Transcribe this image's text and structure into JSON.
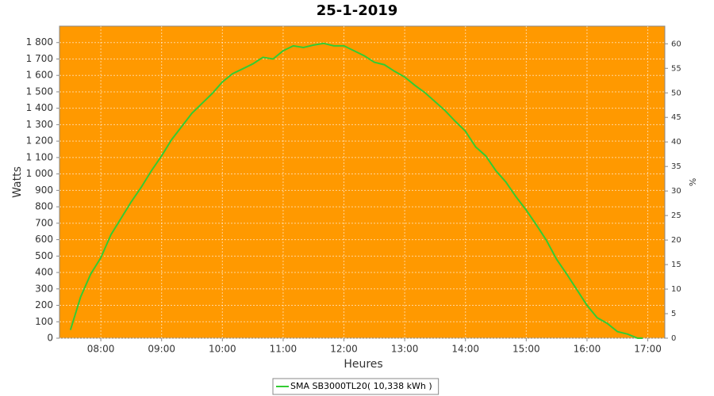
{
  "chart_data": {
    "type": "line",
    "title": "25-1-2019",
    "xlabel": "Heures",
    "ylabel": "Watts",
    "y2label": "%",
    "x": [
      7.5,
      7.6667,
      7.8333,
      8,
      8.1667,
      8.3333,
      8.5,
      8.6667,
      8.8333,
      9,
      9.1667,
      9.3333,
      9.5,
      9.6667,
      9.8333,
      10,
      10.1667,
      10.3333,
      10.5,
      10.6667,
      10.8333,
      11,
      11.1667,
      11.3333,
      11.5,
      11.6667,
      11.8333,
      12,
      12.1667,
      12.3333,
      12.5,
      12.6667,
      12.8333,
      13,
      13.1667,
      13.3333,
      13.5,
      13.6667,
      13.8333,
      14,
      14.1667,
      14.3333,
      14.5,
      14.6667,
      14.8333,
      15,
      15.1667,
      15.3333,
      15.5,
      15.6667,
      15.8333,
      16,
      16.1667,
      16.3333,
      16.5,
      16.6667,
      16.8333,
      16.9167
    ],
    "series": [
      {
        "name": "SMA SB3000TL20( 10,338 kWh )",
        "color": "#33cc33",
        "values": [
          50,
          250,
          390,
          490,
          630,
          730,
          830,
          920,
          1020,
          1110,
          1210,
          1290,
          1370,
          1430,
          1490,
          1560,
          1610,
          1640,
          1670,
          1710,
          1700,
          1750,
          1780,
          1770,
          1785,
          1795,
          1780,
          1780,
          1750,
          1720,
          1680,
          1665,
          1625,
          1590,
          1540,
          1495,
          1440,
          1385,
          1320,
          1260,
          1165,
          1110,
          1020,
          950,
          860,
          780,
          690,
          595,
          480,
          390,
          295,
          200,
          125,
          90,
          40,
          25,
          0,
          0
        ]
      }
    ],
    "xlim": [
      7.32,
      17.28
    ],
    "xticks": [
      {
        "value": 8,
        "label": "08:00"
      },
      {
        "value": 9,
        "label": "09:00"
      },
      {
        "value": 10,
        "label": "10:00"
      },
      {
        "value": 11,
        "label": "11:00"
      },
      {
        "value": 12,
        "label": "12:00"
      },
      {
        "value": 13,
        "label": "13:00"
      },
      {
        "value": 14,
        "label": "14:00"
      },
      {
        "value": 15,
        "label": "15:00"
      },
      {
        "value": 16,
        "label": "16:00"
      },
      {
        "value": 17,
        "label": "17:00"
      }
    ],
    "ylim": [
      0,
      1900
    ],
    "yticks": [
      0,
      100,
      200,
      300,
      400,
      500,
      600,
      700,
      800,
      900,
      {
        "value": 1000,
        "label": "1 000"
      },
      {
        "value": 1100,
        "label": "1 100"
      },
      {
        "value": 1200,
        "label": "1 200"
      },
      {
        "value": 1300,
        "label": "1 300"
      },
      {
        "value": 1400,
        "label": "1 400"
      },
      {
        "value": 1500,
        "label": "1 500"
      },
      {
        "value": 1600,
        "label": "1 600"
      },
      {
        "value": 1700,
        "label": "1 700"
      },
      {
        "value": 1800,
        "label": "1 800"
      }
    ],
    "y2lim": [
      0,
      63.6
    ],
    "y2ticks": [
      0,
      5,
      10,
      15,
      20,
      25,
      30,
      35,
      40,
      45,
      50,
      55,
      60
    ],
    "grid": true,
    "background": "#ff9900"
  }
}
